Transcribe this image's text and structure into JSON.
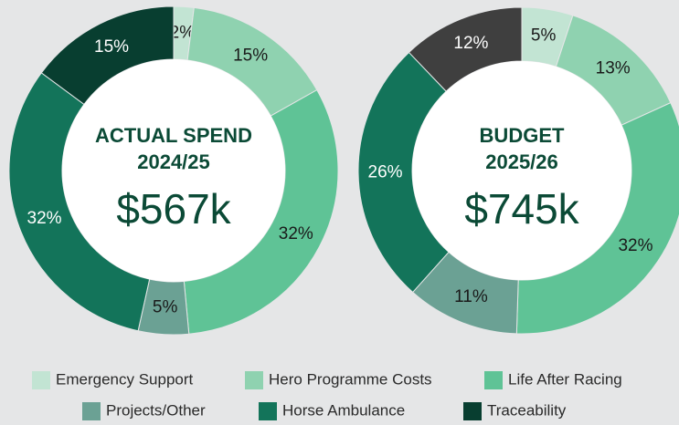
{
  "legend": {
    "categories": [
      "Emergency Support",
      "Hero Programme Costs",
      "Life After Racing",
      "Projects/Other",
      "Horse Ambulance",
      "Traceability"
    ]
  },
  "chart_data": [
    {
      "type": "pie",
      "title": "ACTUAL SPEND",
      "subtitle": "2024/25",
      "total": "$567k",
      "values": [
        2,
        15,
        32,
        5,
        32,
        15
      ],
      "value_labels": [
        "2%",
        "15%",
        "32%",
        "5%",
        "32%",
        "15%"
      ],
      "colors": [
        "#c2e4d3",
        "#8fd2b0",
        "#5fc396",
        "#6ba194",
        "#13745a",
        "#083e30"
      ]
    },
    {
      "type": "pie",
      "title": "BUDGET",
      "subtitle": "2025/26",
      "total": "$745k",
      "values": [
        5,
        13,
        32,
        11,
        26,
        12
      ],
      "value_labels": [
        "5%",
        "13%",
        "32%",
        "11%",
        "26%",
        "12%"
      ],
      "colors": [
        "#c2e4d3",
        "#8fd2b0",
        "#5fc396",
        "#6ba194",
        "#13745a",
        "#3f3f3f"
      ]
    }
  ]
}
